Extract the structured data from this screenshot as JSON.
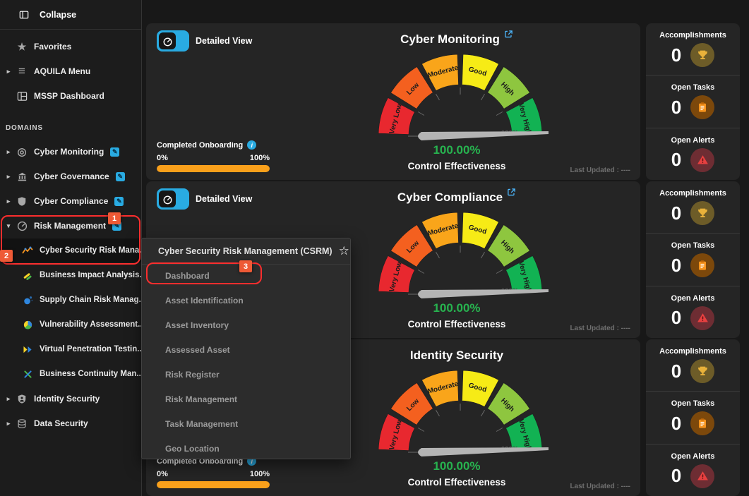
{
  "icons": {
    "favorites_star": "★",
    "hamburger": "≡",
    "caret_right": "▸",
    "caret_down": "▾",
    "chevron_right": "›",
    "edit_pencil": "✎",
    "star_outline": "☆",
    "info": "i",
    "monitoring_bullseye": "◎"
  },
  "colors": {
    "accent_blue": "#29abe2",
    "value_green": "#27b34f",
    "progress_orange": "#f9a01b",
    "annotation_red": "#fb2e2e",
    "badge_orange": "#ee5a36"
  },
  "sidebar": {
    "collapse": {
      "label": "Collapse"
    },
    "top_items": [
      {
        "label": "Favorites"
      },
      {
        "label": "AQUILA Menu"
      },
      {
        "label": "MSSP Dashboard"
      }
    ],
    "domains_header": "DOMAINS",
    "domains": [
      {
        "label": "Cyber Monitoring"
      },
      {
        "label": "Cyber Governance"
      },
      {
        "label": "Cyber Compliance"
      },
      {
        "label": "Risk Management"
      },
      {
        "label": "Identity Security"
      },
      {
        "label": "Data Security"
      }
    ],
    "risk_submenu": [
      {
        "label": "Cyber Security Risk Mana..."
      },
      {
        "label": "Business Impact Analysis..."
      },
      {
        "label": "Supply Chain Risk Manag..."
      },
      {
        "label": "Vulnerability Assessment..."
      },
      {
        "label": "Virtual Penetration Testin..."
      },
      {
        "label": "Business Continuity Man..."
      }
    ]
  },
  "annotations": {
    "step1": "1",
    "step2": "2",
    "step3": "3"
  },
  "popup": {
    "title": "Cyber Security Risk Management (CSRM)",
    "items": [
      {
        "label": "Dashboard"
      },
      {
        "label": "Asset Identification"
      },
      {
        "label": "Asset Inventory"
      },
      {
        "label": "Assessed Asset"
      },
      {
        "label": "Risk Register"
      },
      {
        "label": "Risk Management"
      },
      {
        "label": "Task Management"
      },
      {
        "label": "Geo Location"
      }
    ]
  },
  "cards": [
    {
      "title": "Cyber Monitoring"
    },
    {
      "title": "Cyber Compliance"
    },
    {
      "title": "Identity Security"
    }
  ],
  "toggle": {
    "label": "Detailed View"
  },
  "gauge": {
    "type": "gauge",
    "segments": [
      {
        "label": "Very Low",
        "color": "#e8282f"
      },
      {
        "label": "Low",
        "color": "#f4601f"
      },
      {
        "label": "Moderate",
        "color": "#f9a51a"
      },
      {
        "label": "Good",
        "color": "#f6eb16"
      },
      {
        "label": "High",
        "color": "#8ec63f"
      },
      {
        "label": "Very High",
        "color": "#12b253"
      }
    ],
    "min_label": "0%",
    "max_label": "100%",
    "value": 100.0,
    "value_label": "100.00%",
    "caption": "Control Effectiveness"
  },
  "onboarding": {
    "label": "Completed Onboarding",
    "min": "0%",
    "max": "100%",
    "percent_filled": 100
  },
  "stats": {
    "items": [
      {
        "label": "Accomplishments",
        "value": "0",
        "icon": "trophy-icon"
      },
      {
        "label": "Open Tasks",
        "value": "0",
        "icon": "clipboard-icon"
      },
      {
        "label": "Open Alerts",
        "value": "0",
        "icon": "alert-icon"
      }
    ]
  },
  "footer": {
    "last_updated": "Last Updated : ----"
  }
}
